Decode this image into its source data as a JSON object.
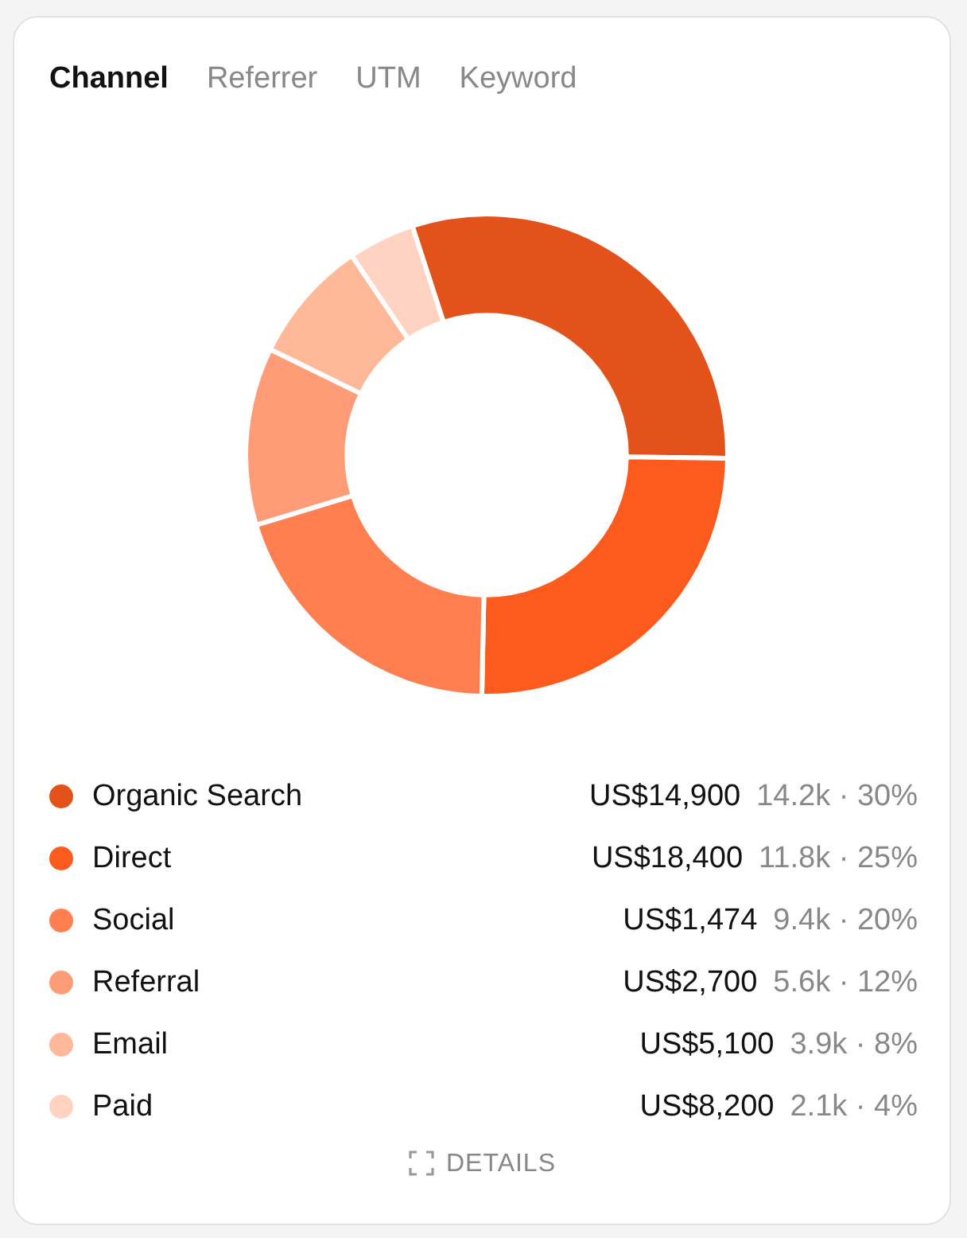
{
  "chart_data": {
    "type": "donut",
    "title": "Channel",
    "categories": [
      "Organic Search",
      "Direct",
      "Social",
      "Referral",
      "Email",
      "Paid"
    ],
    "values": [
      14200,
      11800,
      9400,
      5600,
      3900,
      2100
    ],
    "colors": [
      "#e4521b",
      "#fd5a1e",
      "#ff7f50",
      "#ff9c78",
      "#ffb898",
      "#ffd3c0"
    ],
    "value_labels": [
      "US$14,900 14.2k · 30%",
      "US$18,400 11.8k · 25%",
      "US$1,474 9.4k · 20%",
      "US$2,700 5.6k · 12%",
      "US$5,100 3.9k · 8%",
      "US$8,200 2.1k · 4%"
    ],
    "legend": "bottom",
    "annotations": [
      "Referrer",
      "UTM",
      "Keyword",
      "DETAILS"
    ]
  }
}
